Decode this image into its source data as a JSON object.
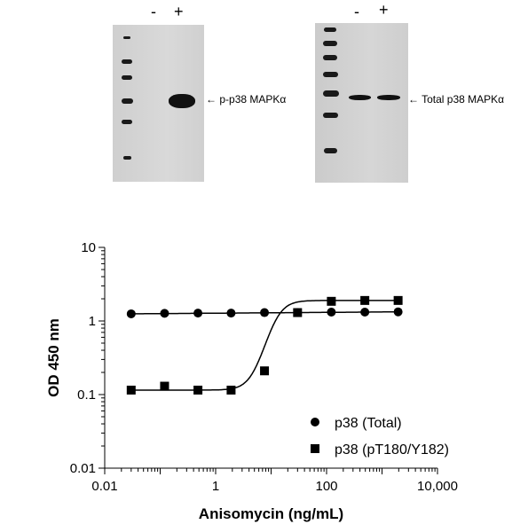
{
  "blots": {
    "left": {
      "lane_minus": "-",
      "lane_plus": "+",
      "band_label": "p-p38 MAPKα"
    },
    "right": {
      "lane_minus": "-",
      "lane_plus": "+",
      "band_label": "Total p38 MAPKα"
    }
  },
  "chart_data": {
    "type": "scatter",
    "xlabel": "Anisomycin (ng/mL)",
    "ylabel": "OD 450 nm",
    "xscale": "log",
    "yscale": "log",
    "xlim": [
      0.01,
      10000
    ],
    "ylim": [
      0.01,
      10
    ],
    "xticks": [
      "0.01",
      "1",
      "100",
      "10,000"
    ],
    "yticks": [
      "10",
      "1",
      "0.1",
      "0.01"
    ],
    "legend_position": "bottom-right",
    "series": [
      {
        "name": "p38 (Total)",
        "marker": "circle",
        "x": [
          0.03,
          0.12,
          0.48,
          1.9,
          7.6,
          30,
          122,
          490,
          1950
        ],
        "y": [
          1.25,
          1.27,
          1.28,
          1.28,
          1.3,
          1.3,
          1.32,
          1.32,
          1.33
        ]
      },
      {
        "name": "p38 (pT180/Y182)",
        "marker": "square",
        "x": [
          0.03,
          0.12,
          0.48,
          1.9,
          7.6,
          30,
          122,
          490,
          1950
        ],
        "y": [
          0.115,
          0.13,
          0.115,
          0.115,
          0.21,
          1.3,
          1.85,
          1.9,
          1.9
        ]
      }
    ]
  }
}
